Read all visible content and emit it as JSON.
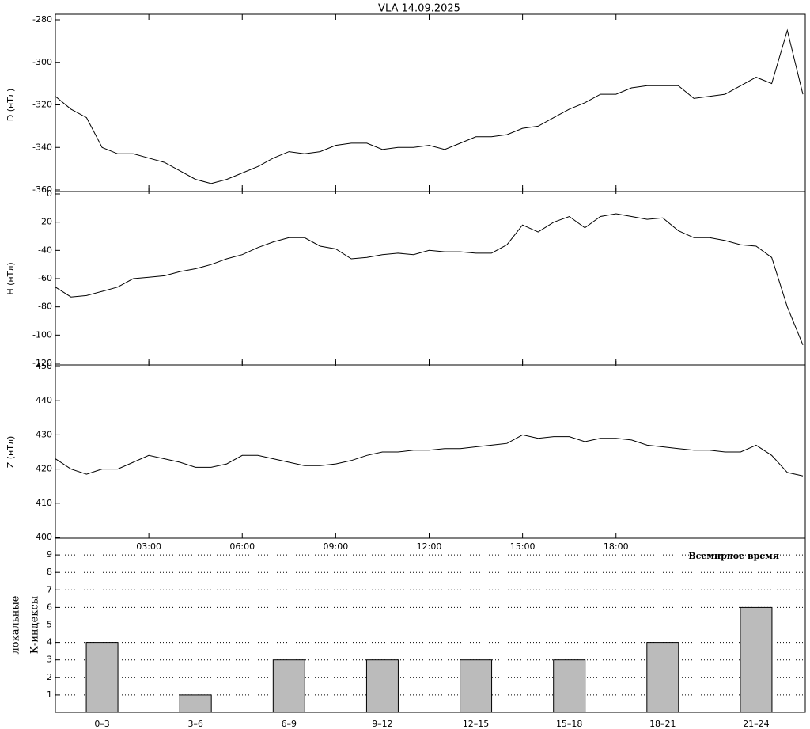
{
  "chart_data": [
    {
      "type": "line",
      "title": "VLA   14.09.2025",
      "y_label": "D (нТл)",
      "xlim": [
        0,
        24
      ],
      "ylim": [
        -360,
        -280
      ],
      "yticks": [
        -360,
        -340,
        -320,
        -300,
        -280
      ],
      "x": [
        0,
        0.5,
        1,
        1.5,
        2,
        2.5,
        3,
        3.5,
        4,
        4.5,
        5,
        5.5,
        6,
        6.5,
        7,
        7.5,
        8,
        8.5,
        9,
        9.5,
        10,
        10.5,
        11,
        11.5,
        12,
        12.5,
        13,
        13.5,
        14,
        14.5,
        15,
        15.5,
        16,
        16.5,
        17,
        17.5,
        18,
        18.5,
        19,
        19.5,
        20,
        20.5,
        21,
        21.5,
        22,
        22.5,
        23,
        23.5,
        24
      ],
      "series": [
        {
          "color": "#000000",
          "values": [
            -316,
            -322,
            -326,
            -340,
            -343,
            -343,
            -345,
            -347,
            -351,
            -355,
            -357,
            -355,
            -352,
            -349,
            -345,
            -342,
            -343,
            -342,
            -339,
            -338,
            -338,
            -341,
            -340,
            -340,
            -339,
            -341,
            -338,
            -335,
            -335,
            -334,
            -331,
            -330,
            -326,
            -322,
            -319,
            -315,
            -315,
            -312,
            -311,
            -311,
            -311,
            -317,
            -316,
            -315,
            -311,
            -307,
            -310,
            -285,
            -315
          ]
        }
      ]
    },
    {
      "type": "line",
      "y_label": "H (нТл)",
      "xlim": [
        0,
        24
      ],
      "ylim": [
        -120,
        0
      ],
      "yticks": [
        -120,
        -100,
        -80,
        -60,
        -40,
        -20,
        0
      ],
      "x": [
        0,
        0.5,
        1,
        1.5,
        2,
        2.5,
        3,
        3.5,
        4,
        4.5,
        5,
        5.5,
        6,
        6.5,
        7,
        7.5,
        8,
        8.5,
        9,
        9.5,
        10,
        10.5,
        11,
        11.5,
        12,
        12.5,
        13,
        13.5,
        14,
        14.5,
        15,
        15.5,
        16,
        16.5,
        17,
        17.5,
        18,
        18.5,
        19,
        19.5,
        20,
        20.5,
        21,
        21.5,
        22,
        22.5,
        23,
        23.5,
        24
      ],
      "series": [
        {
          "color": "#000000",
          "values": [
            -66,
            -73,
            -72,
            -69,
            -66,
            -60,
            -59,
            -58,
            -55,
            -53,
            -50,
            -46,
            -43,
            -38,
            -34,
            -31,
            -31,
            -37,
            -39,
            -46,
            -45,
            -43,
            -42,
            -43,
            -40,
            -41,
            -41,
            -42,
            -42,
            -36,
            -22,
            -27,
            -20,
            -16,
            -24,
            -16,
            -14,
            -16,
            -18,
            -17,
            -26,
            -31,
            -31,
            -33,
            -36,
            -37,
            -45,
            -80,
            -107
          ]
        }
      ]
    },
    {
      "type": "line",
      "y_label": "Z (нТл)",
      "annotation": "Всемирное время",
      "xlim": [
        0,
        24
      ],
      "ylim": [
        400,
        450
      ],
      "yticks": [
        400,
        410,
        420,
        430,
        440,
        450
      ],
      "xticks": [
        {
          "value": 3,
          "label": "03:00"
        },
        {
          "value": 6,
          "label": "06:00"
        },
        {
          "value": 9,
          "label": "09:00"
        },
        {
          "value": 12,
          "label": "12:00"
        },
        {
          "value": 15,
          "label": "15:00"
        },
        {
          "value": 18,
          "label": "18:00"
        }
      ],
      "x": [
        0,
        0.5,
        1,
        1.5,
        2,
        2.5,
        3,
        3.5,
        4,
        4.5,
        5,
        5.5,
        6,
        6.5,
        7,
        7.5,
        8,
        8.5,
        9,
        9.5,
        10,
        10.5,
        11,
        11.5,
        12,
        12.5,
        13,
        13.5,
        14,
        14.5,
        15,
        15.5,
        16,
        16.5,
        17,
        17.5,
        18,
        18.5,
        19,
        19.5,
        20,
        20.5,
        21,
        21.5,
        22,
        22.5,
        23,
        23.5,
        24
      ],
      "series": [
        {
          "color": "#000000",
          "values": [
            423,
            420,
            418.5,
            420,
            420,
            422,
            424,
            423,
            422,
            420.5,
            420.5,
            421.5,
            424,
            424,
            423,
            422,
            421,
            421,
            421.5,
            422.5,
            424,
            425,
            425,
            425.5,
            425.5,
            426,
            426,
            426.5,
            427,
            427.5,
            430,
            429,
            429.5,
            429.5,
            428,
            429,
            429,
            428.5,
            427,
            426.5,
            426,
            425.5,
            425.5,
            425,
            425,
            427,
            424,
            419,
            418
          ]
        }
      ]
    },
    {
      "type": "bar",
      "y_label": [
        "локальные",
        "К-индексы"
      ],
      "categories": [
        "0–3",
        "3–6",
        "6–9",
        "9–12",
        "12–15",
        "15–18",
        "18–21",
        "21–24"
      ],
      "values": [
        4,
        1,
        3,
        3,
        3,
        3,
        4,
        6
      ],
      "color": "#bbbbbb",
      "ylim": [
        0,
        10
      ],
      "yticks": [
        1,
        2,
        3,
        4,
        5,
        6,
        7,
        8,
        9
      ],
      "grid": true
    }
  ]
}
